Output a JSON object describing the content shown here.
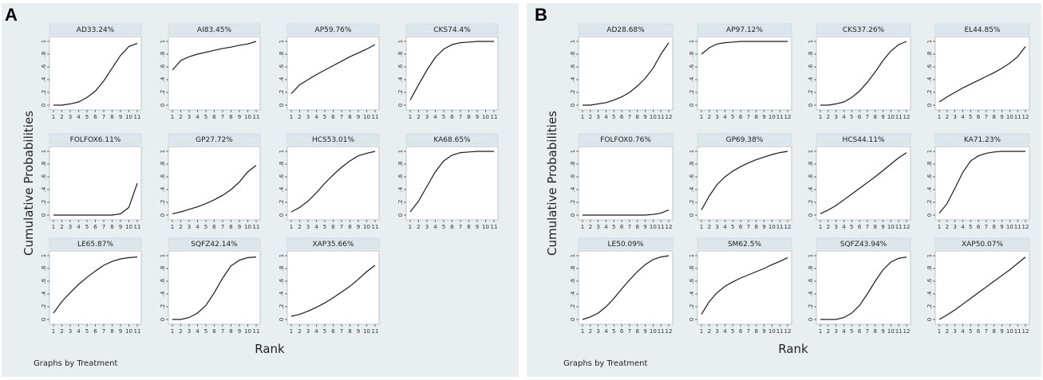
{
  "figure": {
    "panels": [
      {
        "letter": "A",
        "ylabel": "Cumulative Probabilities",
        "xlabel": "Rank",
        "note": "Graphs by Treatment"
      },
      {
        "letter": "B",
        "ylabel": "Cumulative Probabilities",
        "xlabel": "Rank",
        "note": "Graphs by Treatment"
      }
    ],
    "colors": {
      "panel_background": "#e9eef1",
      "plot_background": "#ffffff",
      "title_strip": "#dde6ec",
      "line": "#1a1a1a"
    }
  },
  "chart_data": [
    {
      "type": "line",
      "panel": "A",
      "xlabel": "Rank",
      "ylabel": "Cumulative Probabilities",
      "note": "Graphs by Treatment",
      "x_ticks": [
        "1",
        "2",
        "3",
        "4",
        "5",
        "6",
        "7",
        "8",
        "9",
        "10",
        "11"
      ],
      "y_ticks": [
        "0",
        ".2",
        ".4",
        ".6",
        ".8",
        "1"
      ],
      "ylim": [
        0,
        1
      ],
      "x": [
        1,
        2,
        3,
        4,
        5,
        6,
        7,
        8,
        9,
        10,
        11
      ],
      "subplots": [
        {
          "title": "AD33.24%",
          "values": [
            0.0,
            0.0,
            0.02,
            0.05,
            0.12,
            0.22,
            0.38,
            0.58,
            0.78,
            0.92,
            0.97
          ]
        },
        {
          "title": "AI83.45%",
          "values": [
            0.55,
            0.7,
            0.76,
            0.8,
            0.83,
            0.86,
            0.89,
            0.91,
            0.94,
            0.96,
            1.0
          ]
        },
        {
          "title": "AP59.76%",
          "values": [
            0.18,
            0.32,
            0.4,
            0.48,
            0.55,
            0.62,
            0.69,
            0.76,
            0.82,
            0.88,
            0.95
          ]
        },
        {
          "title": "CKS74.4%",
          "values": [
            0.08,
            0.32,
            0.55,
            0.75,
            0.88,
            0.95,
            0.98,
            0.99,
            1.0,
            1.0,
            1.0
          ]
        },
        {
          "title": "FOLFOX6.11%",
          "values": [
            0.0,
            0.0,
            0.0,
            0.0,
            0.0,
            0.0,
            0.0,
            0.0,
            0.02,
            0.12,
            0.5
          ]
        },
        {
          "title": "GP27.72%",
          "values": [
            0.02,
            0.05,
            0.09,
            0.13,
            0.18,
            0.24,
            0.31,
            0.4,
            0.52,
            0.68,
            0.78
          ]
        },
        {
          "title": "HCS53.01%",
          "values": [
            0.05,
            0.12,
            0.22,
            0.35,
            0.5,
            0.63,
            0.75,
            0.85,
            0.93,
            0.97,
            1.0
          ]
        },
        {
          "title": "KA68.65%",
          "values": [
            0.05,
            0.22,
            0.45,
            0.68,
            0.85,
            0.94,
            0.98,
            0.99,
            1.0,
            1.0,
            1.0
          ]
        },
        {
          "title": "LE65.87%",
          "values": [
            0.1,
            0.28,
            0.42,
            0.55,
            0.66,
            0.76,
            0.85,
            0.91,
            0.95,
            0.97,
            0.98
          ]
        },
        {
          "title": "SQFZ42.14%",
          "values": [
            0.0,
            0.0,
            0.03,
            0.1,
            0.22,
            0.42,
            0.65,
            0.84,
            0.93,
            0.97,
            0.98
          ]
        },
        {
          "title": "XAP35.66%",
          "values": [
            0.05,
            0.08,
            0.13,
            0.19,
            0.26,
            0.34,
            0.43,
            0.52,
            0.63,
            0.75,
            0.85
          ]
        }
      ]
    },
    {
      "type": "line",
      "panel": "B",
      "xlabel": "Rank",
      "ylabel": "Cumulative Probabilities",
      "note": "Graphs by Treatment",
      "x_ticks": [
        "1",
        "2",
        "3",
        "4",
        "5",
        "6",
        "7",
        "8",
        "9",
        "10",
        "11",
        "12"
      ],
      "y_ticks": [
        "0",
        ".2",
        ".4",
        ".6",
        ".8",
        "1"
      ],
      "ylim": [
        0,
        1
      ],
      "x": [
        1,
        2,
        3,
        4,
        5,
        6,
        7,
        8,
        9,
        10,
        11,
        12
      ],
      "subplots": [
        {
          "title": "AD28.68%",
          "values": [
            0.0,
            0.0,
            0.02,
            0.04,
            0.08,
            0.13,
            0.2,
            0.3,
            0.42,
            0.58,
            0.8,
            0.98
          ]
        },
        {
          "title": "AP97.12%",
          "values": [
            0.8,
            0.9,
            0.96,
            0.98,
            0.99,
            1.0,
            1.0,
            1.0,
            1.0,
            1.0,
            1.0,
            1.0
          ]
        },
        {
          "title": "CKS37.26%",
          "values": [
            0.0,
            0.0,
            0.02,
            0.05,
            0.12,
            0.22,
            0.36,
            0.52,
            0.7,
            0.85,
            0.95,
            1.0
          ]
        },
        {
          "title": "EL44.85%",
          "values": [
            0.05,
            0.13,
            0.2,
            0.27,
            0.33,
            0.39,
            0.45,
            0.51,
            0.58,
            0.66,
            0.76,
            0.92
          ]
        },
        {
          "title": "FOLFOX0.76%",
          "values": [
            0.0,
            0.0,
            0.0,
            0.0,
            0.0,
            0.0,
            0.0,
            0.0,
            0.0,
            0.01,
            0.03,
            0.08
          ]
        },
        {
          "title": "GP69.38%",
          "values": [
            0.08,
            0.3,
            0.48,
            0.6,
            0.69,
            0.76,
            0.82,
            0.87,
            0.91,
            0.95,
            0.98,
            1.0
          ]
        },
        {
          "title": "HCS44.11%",
          "values": [
            0.02,
            0.08,
            0.15,
            0.24,
            0.33,
            0.42,
            0.51,
            0.6,
            0.7,
            0.8,
            0.9,
            0.98
          ]
        },
        {
          "title": "KA71.23%",
          "values": [
            0.03,
            0.18,
            0.42,
            0.67,
            0.85,
            0.93,
            0.97,
            0.99,
            1.0,
            1.0,
            1.0,
            1.0
          ]
        },
        {
          "title": "LE50.09%",
          "values": [
            0.0,
            0.04,
            0.1,
            0.2,
            0.33,
            0.48,
            0.62,
            0.75,
            0.86,
            0.94,
            0.98,
            1.0
          ]
        },
        {
          "title": "SM62.5%",
          "values": [
            0.08,
            0.28,
            0.42,
            0.52,
            0.59,
            0.65,
            0.7,
            0.75,
            0.8,
            0.86,
            0.91,
            0.97
          ]
        },
        {
          "title": "SQFZ43.94%",
          "values": [
            0.0,
            0.0,
            0.0,
            0.03,
            0.1,
            0.22,
            0.4,
            0.6,
            0.78,
            0.9,
            0.96,
            0.98
          ]
        },
        {
          "title": "XAP50.07%",
          "values": [
            0.0,
            0.07,
            0.15,
            0.24,
            0.33,
            0.42,
            0.51,
            0.6,
            0.69,
            0.78,
            0.88,
            0.98
          ]
        }
      ]
    }
  ]
}
